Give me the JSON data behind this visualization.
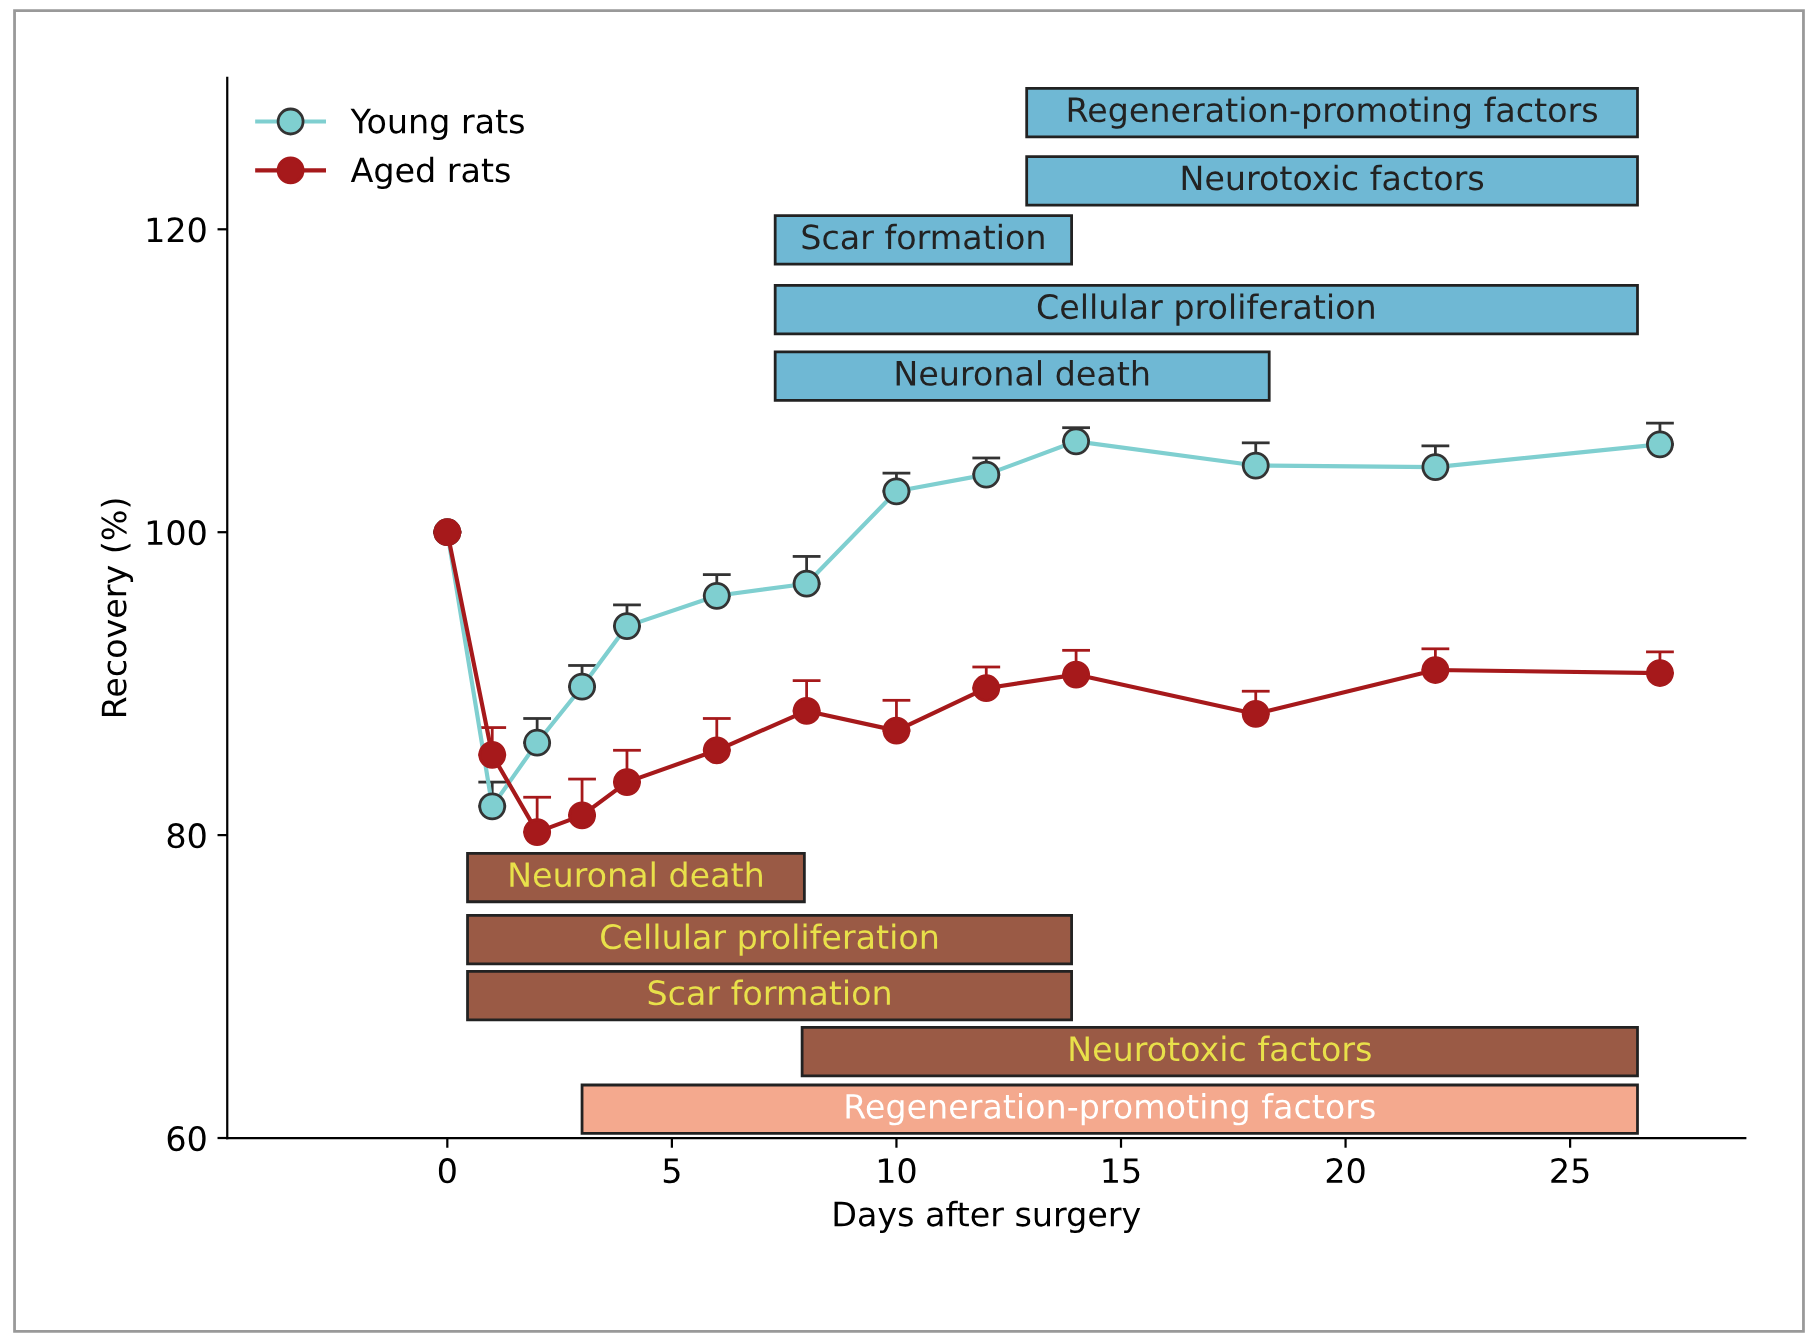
{
  "chart_data": {
    "type": "line",
    "xlabel": "Days after surgery",
    "ylabel": "Recovery (%)",
    "xlim": [
      -4.9,
      28.9
    ],
    "ylim": [
      60,
      130
    ],
    "xticks": [
      0,
      5,
      10,
      15,
      20,
      25
    ],
    "yticks": [
      60,
      80,
      100,
      120
    ],
    "grid": false,
    "legend": "top left",
    "marker": "circle",
    "line_style": "solid",
    "series": [
      {
        "name": "Young rats",
        "color": "#7fcfd0",
        "x": [
          0,
          1,
          2,
          3,
          4,
          6,
          8,
          10,
          12,
          14,
          18,
          22,
          27
        ],
        "values": [
          100,
          81.9,
          86.1,
          89.8,
          93.8,
          95.8,
          96.6,
          102.7,
          103.8,
          106.0,
          104.4,
          104.3,
          105.8
        ],
        "errors": [
          null,
          [
            81.9,
            83.5
          ],
          [
            86.1,
            87.7
          ],
          [
            89.8,
            91.2
          ],
          [
            93.8,
            95.2
          ],
          [
            95.8,
            97.2
          ],
          [
            96.6,
            98.4
          ],
          [
            102.7,
            103.9
          ],
          [
            103.8,
            104.9
          ],
          [
            106.0,
            106.9
          ],
          [
            104.4,
            105.9
          ],
          [
            104.3,
            105.7
          ],
          [
            105.8,
            107.2
          ]
        ]
      },
      {
        "name": "Aged rats",
        "color": "#a6191b",
        "x": [
          0,
          1,
          2,
          3,
          4,
          6,
          8,
          10,
          12,
          14,
          18,
          22,
          27
        ],
        "values": [
          100,
          85.3,
          80.2,
          81.3,
          83.5,
          85.6,
          88.2,
          86.9,
          89.7,
          90.6,
          88.0,
          90.9,
          90.7
        ],
        "errors": [
          null,
          [
            85.3,
            87.1
          ],
          [
            80.2,
            82.5
          ],
          [
            81.3,
            83.7
          ],
          [
            83.5,
            85.6
          ],
          [
            85.6,
            87.7
          ],
          [
            88.2,
            90.2
          ],
          [
            86.9,
            88.9
          ],
          [
            89.7,
            91.1
          ],
          [
            90.6,
            92.2
          ],
          [
            88.0,
            89.5
          ],
          [
            90.9,
            92.3
          ],
          [
            90.7,
            92.1
          ]
        ]
      }
    ],
    "bands": [
      {
        "axis": "x",
        "from": 12.9,
        "to": 26.5,
        "label": "Regeneration-promoting factors",
        "color": "#6fb8d4"
      },
      {
        "axis": "x",
        "from": 12.9,
        "to": 26.5,
        "label": "Neurotoxic factors",
        "color": "#6fb8d4"
      },
      {
        "axis": "x",
        "from": 7.3,
        "to": 13.9,
        "label": "Scar formation",
        "color": "#6fb8d4"
      },
      {
        "axis": "x",
        "from": 7.3,
        "to": 26.5,
        "label": "Cellular proliferation",
        "color": "#6fb8d4"
      },
      {
        "axis": "x",
        "from": 7.3,
        "to": 18.3,
        "label": "Neuronal death",
        "color": "#6fb8d4"
      },
      {
        "axis": "x",
        "from": 0.45,
        "to": 7.95,
        "label": "Neuronal death",
        "color": "#9a5a45"
      },
      {
        "axis": "x",
        "from": 0.45,
        "to": 13.9,
        "label": "Cellular proliferation",
        "color": "#9a5a45"
      },
      {
        "axis": "x",
        "from": 0.45,
        "to": 13.9,
        "label": "Scar formation",
        "color": "#9a5a45"
      },
      {
        "axis": "x",
        "from": 7.9,
        "to": 26.5,
        "label": "Neurotoxic factors",
        "color": "#9a5a45"
      },
      {
        "axis": "x",
        "from": 3.0,
        "to": 26.5,
        "label": "Regeneration-promoting factors",
        "color": "#f4a98e"
      }
    ]
  }
}
